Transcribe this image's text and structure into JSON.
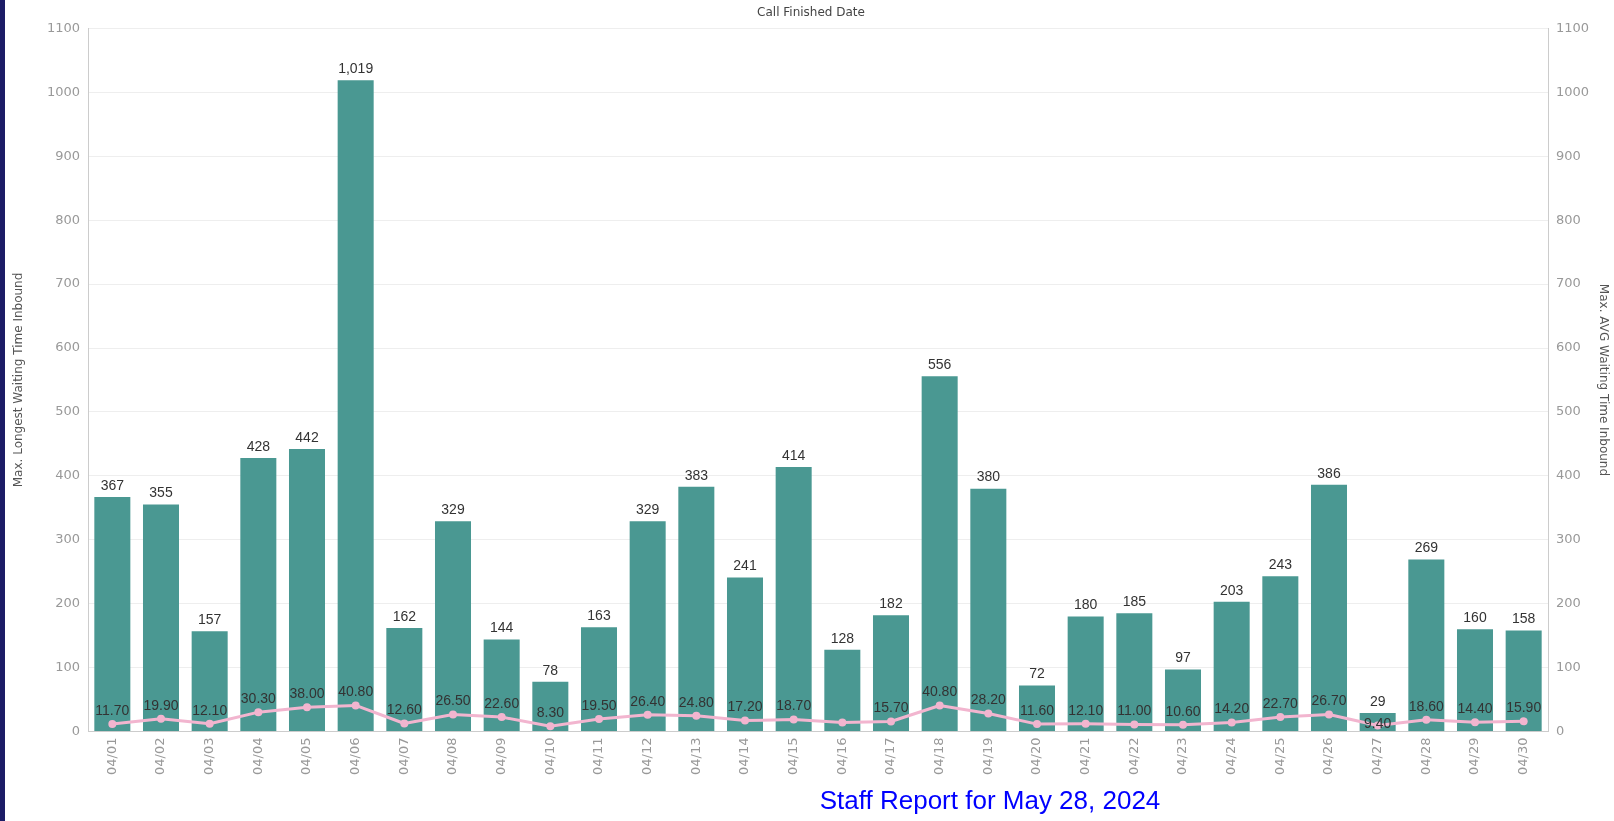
{
  "chart_data": {
    "type": "bar",
    "xlabel": "Call Finished Date",
    "ylabel": "Max. Longest Waiting Time Inbound",
    "y2label": "Max. AVG Waiting Time Inbound",
    "categories": [
      "04/01",
      "04/02",
      "04/03",
      "04/04",
      "04/05",
      "04/06",
      "04/07",
      "04/08",
      "04/09",
      "04/10",
      "04/11",
      "04/12",
      "04/13",
      "04/14",
      "04/15",
      "04/16",
      "04/17",
      "04/18",
      "04/19",
      "04/20",
      "04/21",
      "04/22",
      "04/23",
      "04/24",
      "04/25",
      "04/26",
      "04/27",
      "04/28",
      "04/29",
      "04/30"
    ],
    "series": [
      {
        "color": "#4a9892",
        "values": [
          367,
          355,
          157,
          428,
          442,
          1019,
          162,
          329,
          144,
          78,
          163,
          329,
          383,
          241,
          414,
          128,
          182,
          556,
          380,
          72,
          180,
          185,
          97,
          203,
          243,
          386,
          29,
          269,
          160,
          158
        ],
        "value_labels": [
          "367",
          "355",
          "157",
          "428",
          "442",
          "1,019",
          "162",
          "329",
          "144",
          "78",
          "163",
          "329",
          "383",
          "241",
          "414",
          "128",
          "182",
          "556",
          "380",
          "72",
          "180",
          "185",
          "97",
          "203",
          "243",
          "386",
          "29",
          "269",
          "160",
          "158"
        ]
      },
      {
        "type": "line",
        "axis": "y2",
        "color": "#f2b5cf",
        "values": [
          11.7,
          19.9,
          12.1,
          30.3,
          38.0,
          40.8,
          12.6,
          26.5,
          22.6,
          8.3,
          19.5,
          26.4,
          24.8,
          17.2,
          18.7,
          14,
          15.7,
          40.8,
          28.2,
          11.6,
          12.1,
          11.0,
          10.6,
          14.2,
          22.7,
          26.7,
          9.4,
          18.6,
          14.4,
          15.9
        ],
        "value_labels": [
          "11.70",
          "19.90",
          "12.10",
          "30.30",
          "38.00",
          "40.80",
          "12.60",
          "26.50",
          "22.60",
          "8.30",
          "19.50",
          "26.40",
          "24.80",
          "17.20",
          "18.70",
          null,
          "15.70",
          "40.80",
          "28.20",
          "11.60",
          "12.10",
          "11.00",
          "10.60",
          "14.20",
          "22.70",
          "26.70",
          "9.40",
          "18.60",
          "14.40",
          "15.90"
        ]
      }
    ],
    "ylim": [
      0,
      1100
    ],
    "yticks": [
      0,
      100,
      200,
      300,
      400,
      500,
      600,
      700,
      800,
      900,
      1000,
      1100
    ],
    "y2lim": [
      0,
      1100
    ],
    "y2ticks": [
      0,
      100,
      200,
      300,
      400,
      500,
      600,
      700,
      800,
      900,
      1000,
      1100
    ],
    "grid": "y",
    "legend": false,
    "marker": "circle",
    "line_style": "solid",
    "annotations": [
      "Staff Report for May 28, 2024"
    ]
  }
}
